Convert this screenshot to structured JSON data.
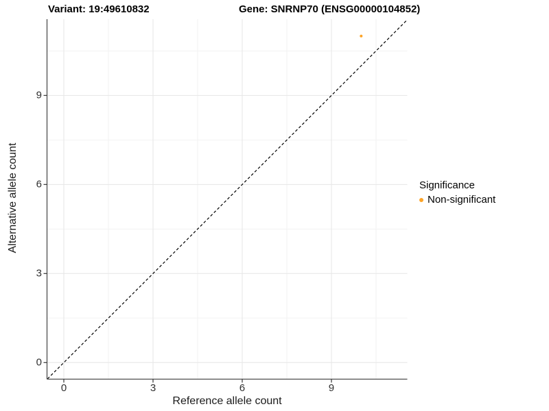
{
  "figure": {
    "title_left": "Variant: 19:49610832",
    "title_right": "Gene: SNRNP70 (ENSG00000104852)"
  },
  "chart_data": {
    "type": "scatter",
    "title": "",
    "xlabel": "Reference allele count",
    "ylabel": "Alternative allele count",
    "x_ticks": [
      0,
      3,
      6,
      9
    ],
    "y_ticks": [
      0,
      3,
      6,
      9
    ],
    "x_minor": [
      1.5,
      4.5,
      7.5,
      10.5
    ],
    "y_minor": [
      1.5,
      4.5,
      7.5,
      10.5
    ],
    "xlim": [
      -0.55,
      11.55
    ],
    "ylim": [
      -0.55,
      11.55
    ],
    "grid": true,
    "legend_position": "right",
    "identity_line": {
      "style": "dashed",
      "color": "#000000",
      "from": [
        -0.55,
        -0.55
      ],
      "to": [
        11.55,
        11.55
      ]
    },
    "series": [
      {
        "name": "Non-significant",
        "color": "#FDA428",
        "points": [
          {
            "x": 10,
            "y": 11
          }
        ]
      }
    ]
  },
  "legend": {
    "title": "Significance",
    "items": [
      {
        "label": "Non-significant",
        "color": "#FDA428",
        "marker": "dot-icon"
      }
    ]
  },
  "colors": {
    "grid_major": "#E6E6E6",
    "grid_minor": "#F2F2F2",
    "axis_line": "#4D4D4D",
    "tick_mark": "#333333",
    "title_text": "#000000"
  }
}
